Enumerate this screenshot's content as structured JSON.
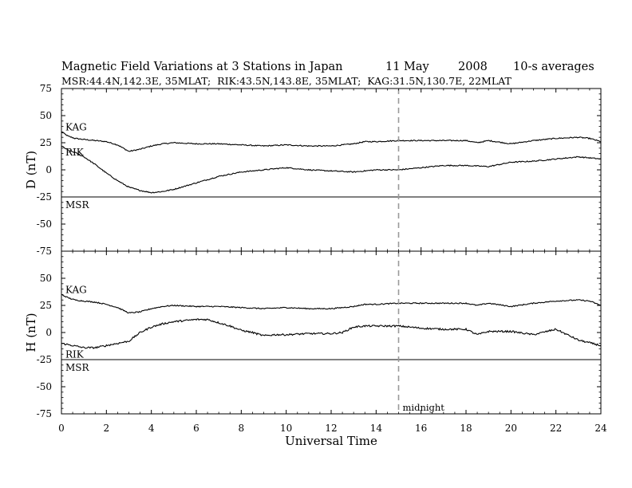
{
  "chart_data": {
    "type": "line",
    "title": "Magnetic Field Variations at 3 Stations in Japan",
    "title_date": "11 May",
    "title_year": "2008",
    "title_cadence": "10-s averages",
    "subtitle": "MSR:44.4N,142.3E, 35MLAT;  RIK:43.5N,143.8E, 35MLAT;  KAG:31.5N,130.7E, 22MLAT",
    "xlabel": "Universal Time",
    "xlim": [
      0,
      24
    ],
    "xticks": [
      0,
      2,
      4,
      6,
      8,
      10,
      12,
      14,
      16,
      18,
      20,
      22,
      24
    ],
    "annotation": {
      "text": "midnight",
      "x": 15
    },
    "panels": [
      {
        "ylabel": "D (nT)",
        "ylim": [
          -75,
          75
        ],
        "yticks": [
          75,
          50,
          25,
          0,
          -25,
          -50,
          -75
        ],
        "series": [
          {
            "name": "KAG",
            "x": [
              0,
              0.3,
              0.6,
              1,
              1.5,
              2,
              2.5,
              3,
              3.5,
              4,
              4.5,
              5,
              6,
              7,
              8,
              9,
              10,
              11,
              12,
              12.5,
              13,
              13.5,
              14,
              15,
              16,
              17,
              18,
              18.5,
              19,
              20,
              21,
              22,
              23,
              23.5,
              24
            ],
            "y": [
              35,
              31,
              29,
              28,
              27,
              26,
              23,
              17,
              19,
              22,
              24,
              25,
              24,
              24,
              23,
              22,
              23,
              22,
              22,
              23,
              24,
              26,
              26,
              27,
              27,
              27,
              27,
              25,
              27,
              24,
              27,
              29,
              30,
              29,
              26
            ]
          },
          {
            "name": "RIK",
            "x": [
              0,
              0.3,
              0.6,
              1,
              1.5,
              2,
              2.5,
              3,
              3.5,
              4,
              4.5,
              5,
              6,
              7,
              8,
              9,
              10,
              11,
              12,
              13,
              14,
              15,
              16,
              17,
              18,
              19,
              20,
              21,
              22,
              23,
              24
            ],
            "y": [
              22,
              18,
              16,
              12,
              5,
              -3,
              -10,
              -16,
              -19,
              -21,
              -20,
              -18,
              -12,
              -6,
              -2,
              0,
              2,
              0,
              -1,
              -2,
              0,
              0,
              2,
              4,
              4,
              3,
              7,
              8,
              10,
              12,
              10
            ]
          },
          {
            "name": "MSR",
            "x": [
              0,
              24
            ],
            "y": [
              -25,
              -25
            ]
          }
        ]
      },
      {
        "ylabel": "H (nT)",
        "ylim": [
          -75,
          75
        ],
        "yticks": [
          75,
          50,
          25,
          0,
          -25,
          -50,
          -75
        ],
        "series": [
          {
            "name": "KAG",
            "x": [
              0,
              0.3,
              0.6,
              1,
              1.5,
              2,
              2.5,
              3,
              3.5,
              4,
              4.5,
              5,
              6,
              7,
              8,
              9,
              10,
              11,
              12,
              12.5,
              13,
              13.5,
              14,
              15,
              16,
              17,
              18,
              18.5,
              19,
              20,
              21,
              22,
              23,
              23.5,
              24
            ],
            "y": [
              35,
              32,
              30,
              29,
              28,
              26,
              23,
              18,
              19,
              22,
              24,
              25,
              24,
              24,
              23,
              22,
              23,
              22,
              22,
              23,
              24,
              26,
              26,
              27,
              27,
              27,
              27,
              25,
              27,
              24,
              27,
              29,
              30,
              29,
              25
            ]
          },
          {
            "name": "RIK",
            "x": [
              0,
              0.5,
              1,
              1.5,
              2,
              2.5,
              3,
              3.5,
              4,
              4.5,
              5,
              5.5,
              6,
              6.5,
              7,
              7.5,
              8,
              8.5,
              9,
              9.5,
              10,
              11,
              12,
              12.5,
              13,
              13.5,
              14,
              15,
              16,
              17,
              18,
              18.5,
              19,
              20,
              21,
              22,
              23,
              24
            ],
            "y": [
              -10,
              -12,
              -14,
              -14,
              -12,
              -10,
              -8,
              0,
              5,
              8,
              10,
              11,
              12,
              12,
              9,
              6,
              2,
              0,
              -3,
              -2,
              -2,
              -1,
              -1,
              0,
              5,
              6,
              6,
              6,
              4,
              3,
              3,
              -2,
              1,
              1,
              -2,
              3,
              -7,
              -12
            ]
          },
          {
            "name": "MSR",
            "x": [
              0,
              24
            ],
            "y": [
              -25,
              -25
            ]
          }
        ]
      }
    ]
  }
}
